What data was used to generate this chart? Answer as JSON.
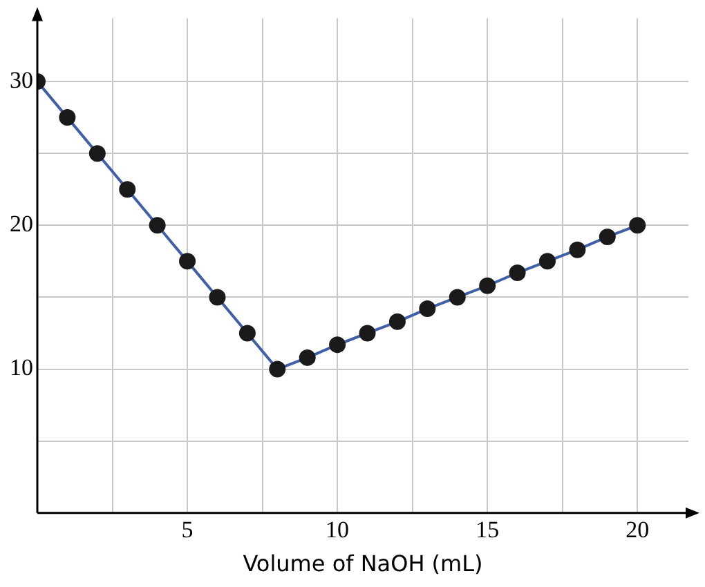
{
  "chart_data": {
    "type": "line",
    "xlabel": "Volume of NaOH (mL)",
    "x": [
      0,
      1,
      2,
      3,
      4,
      5,
      6,
      7,
      8,
      9,
      10,
      11,
      12,
      13,
      14,
      15,
      16,
      17,
      18,
      19,
      20
    ],
    "series": [
      {
        "color": "#3f5fa8",
        "values": [
          30,
          27.5,
          25,
          22.5,
          20,
          17.5,
          15,
          12.5,
          10,
          10.8,
          11.7,
          12.5,
          13.3,
          14.2,
          15,
          15.8,
          16.7,
          17.5,
          18.3,
          19.2,
          20
        ]
      }
    ],
    "xlim": [
      0,
      21.7
    ],
    "ylim": [
      0,
      34.4
    ],
    "xticks": [
      {
        "value": 2.5,
        "label": null
      },
      5,
      {
        "value": 7.5,
        "label": null
      },
      10,
      {
        "value": 12.5,
        "label": null
      },
      15,
      {
        "value": 17.5,
        "label": null
      },
      20
    ],
    "yticks": [
      {
        "value": 5,
        "label": null
      },
      10,
      {
        "value": 15,
        "label": null
      },
      20,
      {
        "value": 25,
        "label": null
      },
      30
    ],
    "grid": true,
    "marker": "circle",
    "line_style": "solid",
    "legend": false
  }
}
